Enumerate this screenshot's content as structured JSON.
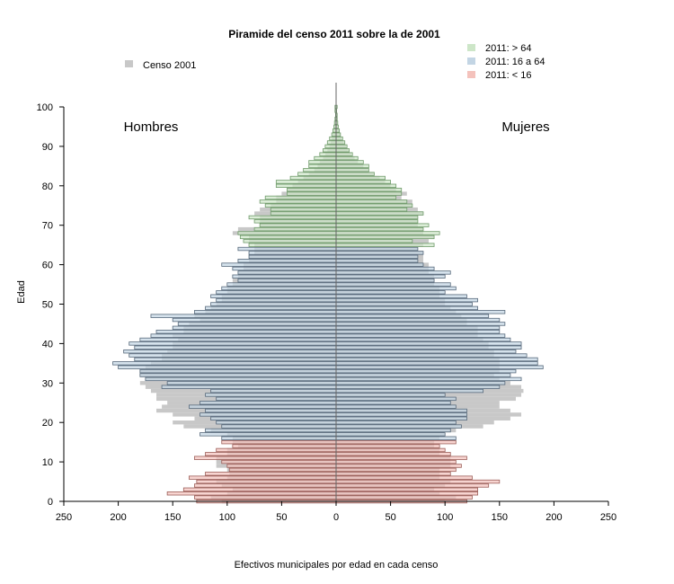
{
  "chart_data": {
    "type": "bar",
    "orientation": "horizontal",
    "title": "Piramide del censo 2011 sobre la de 2001",
    "xlabel": "Efectivos municipales por edad en cada censo",
    "ylabel": "Edad",
    "xlim": [
      -250,
      250
    ],
    "ylim": [
      0,
      100
    ],
    "x_ticks": [
      -250,
      -200,
      -150,
      -100,
      -50,
      0,
      50,
      100,
      150,
      200,
      250
    ],
    "x_tick_labels": [
      "250",
      "200",
      "150",
      "100",
      "50",
      "0",
      "50",
      "100",
      "150",
      "200",
      "250"
    ],
    "y_ticks": [
      0,
      10,
      20,
      30,
      40,
      50,
      60,
      70,
      80,
      90,
      100
    ],
    "annotations": {
      "left": "Hombres",
      "right": "Mujeres"
    },
    "legend_2001": {
      "label": "Censo 2001",
      "color": "#c8c8c8",
      "placement": "top-left"
    },
    "legend_2011": {
      "placement": "top-right",
      "entries": [
        {
          "label": "2011: > 64",
          "color": "#cde6c8",
          "edge": "#6f9a6a"
        },
        {
          "label": "2011: 16 a 64",
          "color": "#c3d5e4",
          "edge": "#56687a"
        },
        {
          "label": "2011: < 16",
          "color": "#f4c2bc",
          "edge": "#9b5e58"
        }
      ]
    },
    "series": [
      {
        "name": "Censo 2001",
        "age_start": 0,
        "men": [
          105,
          115,
          100,
          95,
          105,
          110,
          100,
          98,
          100,
          110,
          110,
          110,
          100,
          100,
          90,
          95,
          95,
          100,
          115,
          140,
          150,
          130,
          150,
          165,
          160,
          155,
          165,
          165,
          170,
          175,
          180,
          175,
          180,
          180,
          175,
          170,
          160,
          160,
          155,
          150,
          150,
          145,
          150,
          140,
          140,
          135,
          125,
          130,
          120,
          115,
          110,
          105,
          105,
          100,
          100,
          95,
          95,
          90,
          90,
          85,
          85,
          80,
          80,
          75,
          75,
          75,
          80,
          80,
          95,
          90,
          70,
          70,
          70,
          75,
          70,
          60,
          55,
          55,
          50,
          45,
          40,
          35,
          30,
          25,
          20,
          17,
          15,
          12,
          10,
          8,
          6,
          5,
          4,
          3,
          2,
          1.5,
          1,
          1,
          0.5,
          0.5,
          0
        ],
        "women": [
          100,
          110,
          95,
          90,
          100,
          105,
          95,
          95,
          95,
          105,
          105,
          105,
          95,
          95,
          90,
          90,
          95,
          100,
          110,
          135,
          145,
          160,
          170,
          160,
          150,
          150,
          165,
          170,
          172,
          170,
          160,
          150,
          145,
          150,
          150,
          150,
          150,
          145,
          145,
          140,
          140,
          135,
          130,
          130,
          130,
          120,
          120,
          115,
          110,
          105,
          100,
          100,
          95,
          95,
          95,
          90,
          90,
          90,
          85,
          85,
          85,
          80,
          80,
          80,
          75,
          80,
          85,
          90,
          80,
          80,
          75,
          75,
          75,
          80,
          75,
          70,
          70,
          60,
          65,
          55,
          50,
          45,
          40,
          35,
          30,
          25,
          20,
          17,
          14,
          11,
          9,
          7,
          5,
          4,
          3,
          2,
          1.5,
          1,
          0.5,
          0.5,
          0
        ]
      },
      {
        "name": "2011",
        "age_start": 0,
        "men": [
          128,
          130,
          155,
          140,
          130,
          128,
          135,
          120,
          98,
          100,
          105,
          130,
          120,
          110,
          95,
          105,
          105,
          125,
          120,
          105,
          110,
          115,
          125,
          120,
          135,
          125,
          110,
          120,
          115,
          160,
          155,
          175,
          180,
          180,
          200,
          205,
          185,
          190,
          195,
          185,
          190,
          180,
          170,
          165,
          150,
          145,
          150,
          170,
          130,
          120,
          115,
          110,
          115,
          110,
          105,
          100,
          90,
          95,
          90,
          95,
          105,
          90,
          80,
          80,
          90,
          80,
          85,
          88,
          90,
          75,
          70,
          75,
          80,
          60,
          60,
          65,
          70,
          65,
          45,
          45,
          55,
          55,
          42,
          35,
          30,
          25,
          25,
          20,
          15,
          12,
          10,
          8,
          6,
          4,
          3,
          2,
          1.5,
          1,
          0.5,
          1,
          1
        ],
        "women": [
          120,
          125,
          130,
          130,
          140,
          150,
          125,
          105,
          110,
          115,
          110,
          120,
          105,
          100,
          95,
          110,
          110,
          100,
          105,
          115,
          110,
          120,
          120,
          120,
          110,
          105,
          110,
          100,
          135,
          150,
          155,
          170,
          160,
          165,
          190,
          185,
          185,
          175,
          165,
          170,
          170,
          160,
          155,
          150,
          150,
          155,
          150,
          140,
          155,
          130,
          125,
          130,
          120,
          100,
          110,
          105,
          90,
          100,
          105,
          90,
          80,
          75,
          75,
          80,
          75,
          90,
          70,
          90,
          95,
          80,
          85,
          75,
          75,
          80,
          65,
          70,
          65,
          55,
          60,
          60,
          55,
          50,
          45,
          35,
          30,
          30,
          25,
          20,
          15,
          12,
          10,
          8,
          6,
          4,
          3,
          2,
          1.5,
          1,
          1,
          0.5,
          1
        ]
      }
    ]
  }
}
